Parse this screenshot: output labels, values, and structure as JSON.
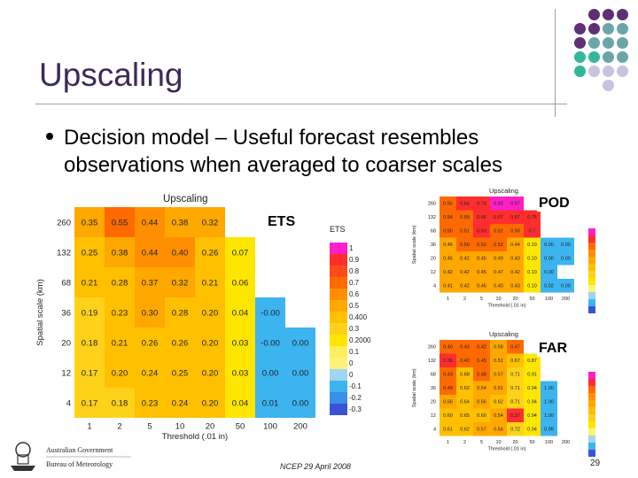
{
  "slide": {
    "title": "Upscaling",
    "bullet": "Decision model – Useful forecast resembles observations when averaged to coarser scales",
    "footer": "NCEP 29 April 2008",
    "page_number": "29",
    "logo_line1": "Australian Government",
    "logo_line2": "Bureau of Meteorology"
  },
  "badges": {
    "ets": "ETS",
    "pod": "POD",
    "far": "FAR"
  },
  "colors": {
    "title": "#3c2a5a",
    "purple": "#5e2f73",
    "teal": "#6aa6a8",
    "green": "#2fb99a",
    "lavender": "#c9c3dd"
  },
  "chart_data": [
    {
      "type": "heatmap",
      "title": "Upscaling",
      "xlabel": "Threshold (.01 in)",
      "ylabel": "Spatial scale (km)",
      "x": [
        "1",
        "2",
        "5",
        "10",
        "20",
        "50",
        "100",
        "200"
      ],
      "y": [
        "260",
        "132",
        "68",
        "36",
        "20",
        "12",
        "4"
      ],
      "values": [
        [
          "0.35",
          "0.55",
          "0.44",
          "0.38",
          "0.32",
          "",
          "",
          ""
        ],
        [
          "0.25",
          "0.38",
          "0.44",
          "0.40",
          "0.26",
          "0.07",
          "",
          ""
        ],
        [
          "0.21",
          "0.28",
          "0.37",
          "0.32",
          "0.21",
          "0.06",
          "",
          ""
        ],
        [
          "0.19",
          "0.23",
          "0.30",
          "0.28",
          "0.20",
          "0.04",
          "-0.00",
          ""
        ],
        [
          "0.18",
          "0.21",
          "0.26",
          "0.26",
          "0.20",
          "0.03",
          "-0.00",
          "0.00"
        ],
        [
          "0.17",
          "0.20",
          "0.24",
          "0.25",
          "0.20",
          "0.03",
          "0.00",
          "0.00"
        ],
        [
          "0.17",
          "0.18",
          "0.23",
          "0.24",
          "0.20",
          "0.04",
          "0.01",
          "0.00"
        ]
      ],
      "colorbar": {
        "title": "ETS",
        "labels": [
          "1",
          "0.9",
          "0.8",
          "0.7",
          "0.6",
          "0.5",
          "0.400",
          "0.3",
          "0.2000",
          "0.1",
          "0",
          "0",
          "-0.1",
          "-0.2",
          "-0.3"
        ]
      }
    },
    {
      "type": "heatmap",
      "title": "Upscaling",
      "xlabel": "Threshold (.01 in)",
      "ylabel": "Spatial scale (km)",
      "x": [
        "1",
        "2",
        "5",
        "10",
        "20",
        "50",
        "100",
        "200"
      ],
      "y": [
        "260",
        "132",
        "68",
        "36",
        "20",
        "12",
        "4"
      ],
      "values": [
        [
          "0.56",
          "0.64",
          "0.74",
          "0.83",
          "0.97",
          "",
          "",
          ""
        ],
        [
          "0.54",
          "0.59",
          "0.66",
          "0.67",
          "0.67",
          "0.75",
          "",
          ""
        ],
        [
          "0.50",
          "0.51",
          "0.60",
          "0.52",
          "0.50",
          "0.7",
          "",
          ""
        ],
        [
          "0.46",
          "0.50",
          "0.50",
          "0.52",
          "0.44",
          "0.10",
          "0.00",
          "0.00"
        ],
        [
          "0.45",
          "0.42",
          "0.45",
          "0.49",
          "0.43",
          "0.10",
          "0.00",
          "0.00"
        ],
        [
          "0.42",
          "0.42",
          "0.45",
          "0.47",
          "0.42",
          "0.10",
          "0.00",
          ""
        ],
        [
          "0.41",
          "0.42",
          "0.46",
          "0.40",
          "0.43",
          "0.10",
          "0.02",
          "0.00"
        ]
      ],
      "colorbar": {
        "title": "POD"
      }
    },
    {
      "type": "heatmap",
      "title": "Upscaling",
      "xlabel": "Threshold (.01 in)",
      "ylabel": "Spatial scale (km)",
      "x": [
        "1",
        "2",
        "5",
        "10",
        "20",
        "50",
        "100",
        "200"
      ],
      "y": [
        "260",
        "132",
        "68",
        "36",
        "20",
        "12",
        "4"
      ],
      "values": [
        [
          "0.40",
          "0.43",
          "0.42",
          "0.58",
          "0.47",
          "",
          "",
          ""
        ],
        [
          "0.36",
          "0.42",
          "0.45",
          "0.51",
          "0.67",
          "0.87",
          "",
          ""
        ],
        [
          "0.43",
          "0.68",
          "0.48",
          "0.57",
          "0.71",
          "0.91",
          "",
          ""
        ],
        [
          "0.49",
          "0.62",
          "0.54",
          "0.51",
          "0.71",
          "0.94",
          "1.00",
          ""
        ],
        [
          "0.56",
          "0.64",
          "0.56",
          "0.62",
          "0.71",
          "0.94",
          "1.00",
          ""
        ],
        [
          "0.60",
          "0.65",
          "0.60",
          "0.54",
          "0.37",
          "0.94",
          "1.00",
          ""
        ],
        [
          "0.61",
          "0.62",
          "0.57",
          "0.54",
          "0.72",
          "0.94",
          "0.99",
          ""
        ]
      ],
      "colorbar": {
        "title": "FAR"
      }
    }
  ]
}
